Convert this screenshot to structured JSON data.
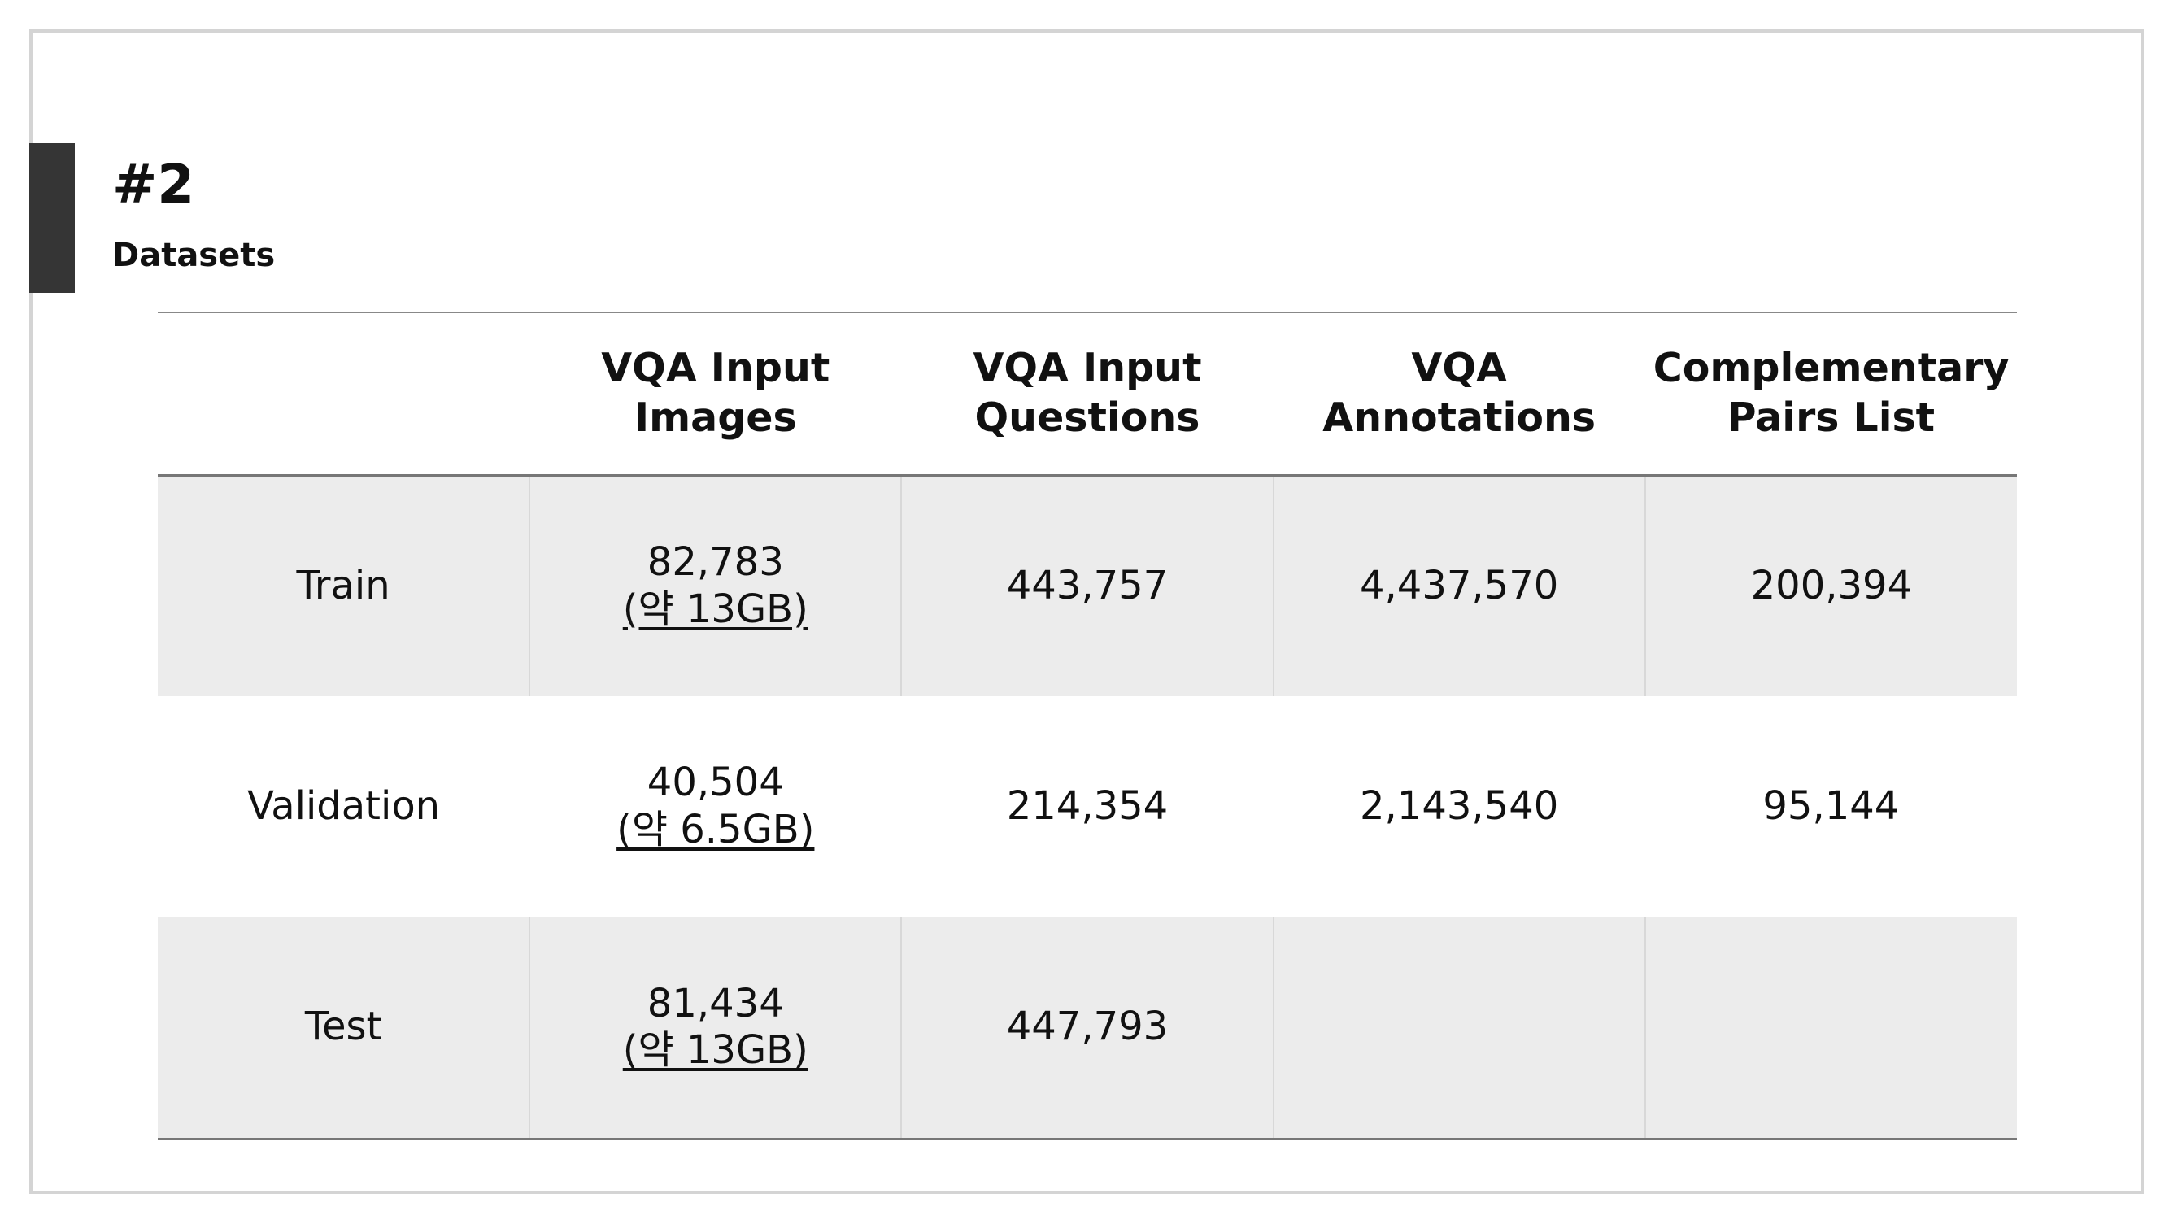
{
  "heading": {
    "number": "#2",
    "subtitle": "Datasets"
  },
  "table": {
    "columns": [
      "",
      "VQA Input Images",
      "VQA Input Questions",
      "VQA Annotations",
      "Complementary Pairs List"
    ],
    "rows": [
      {
        "split": "Train",
        "images_count": "82,783",
        "images_size": "(약 13GB)",
        "questions": "443,757",
        "annotations": "4,437,570",
        "pairs": "200,394"
      },
      {
        "split": "Validation",
        "images_count": "40,504",
        "images_size": "(약 6.5GB)",
        "questions": "214,354",
        "annotations": "2,143,540",
        "pairs": "95,144"
      },
      {
        "split": "Test",
        "images_count": "81,434",
        "images_size": "(약 13GB)",
        "questions": "447,793",
        "annotations": "",
        "pairs": ""
      }
    ]
  },
  "colors": {
    "accent_bar": "#353535",
    "row_shade": "#ececec",
    "frame_border": "#d4d4d4"
  }
}
